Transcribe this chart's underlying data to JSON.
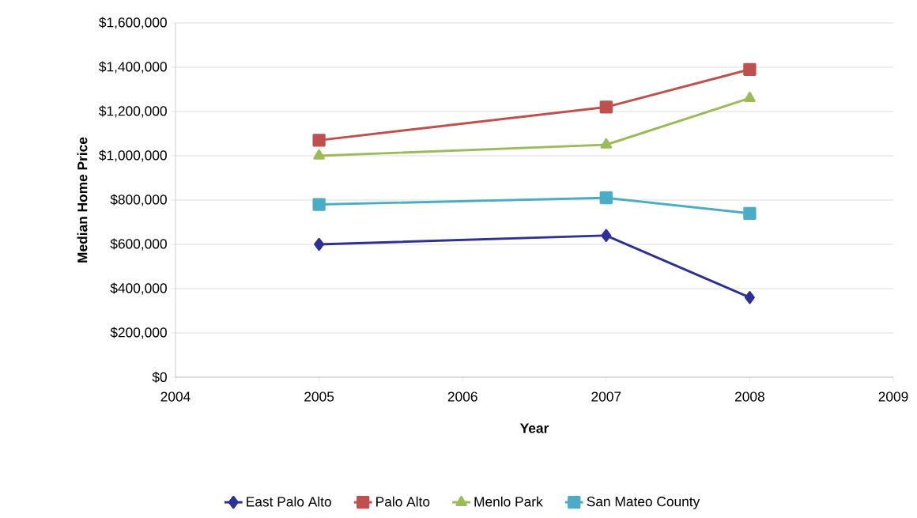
{
  "chart_data": {
    "type": "line",
    "xlabel": "Year",
    "ylabel": "Median Home Price",
    "xlim": [
      2004,
      2009
    ],
    "xticks": [
      2004,
      2005,
      2006,
      2007,
      2008,
      2009
    ],
    "ylim": [
      0,
      1600000
    ],
    "yticks": [
      {
        "value": 0,
        "label": "$0"
      },
      {
        "value": 200000,
        "label": "$200,000"
      },
      {
        "value": 400000,
        "label": "$400,000"
      },
      {
        "value": 600000,
        "label": "$600,000"
      },
      {
        "value": 800000,
        "label": "$800,000"
      },
      {
        "value": 1000000,
        "label": "$1,000,000"
      },
      {
        "value": 1200000,
        "label": "$1,200,000"
      },
      {
        "value": 1400000,
        "label": "$1,400,000"
      },
      {
        "value": 1600000,
        "label": "$1,600,000"
      }
    ],
    "x": [
      2005,
      2007,
      2008
    ],
    "series": [
      {
        "name": "East Palo Alto",
        "color": "#2e3192",
        "marker": "diamond",
        "values": [
          600000,
          640000,
          360000
        ]
      },
      {
        "name": "Palo Alto",
        "color": "#c0504d",
        "marker": "square",
        "values": [
          1070000,
          1220000,
          1390000
        ]
      },
      {
        "name": "Menlo Park",
        "color": "#9bbb59",
        "marker": "triangle",
        "values": [
          1000000,
          1050000,
          1260000
        ]
      },
      {
        "name": "San Mateo County",
        "color": "#4bacc6",
        "marker": "square",
        "values": [
          780000,
          810000,
          740000
        ]
      }
    ],
    "grid": "y",
    "legend": "bottom",
    "line_style": "solid"
  }
}
